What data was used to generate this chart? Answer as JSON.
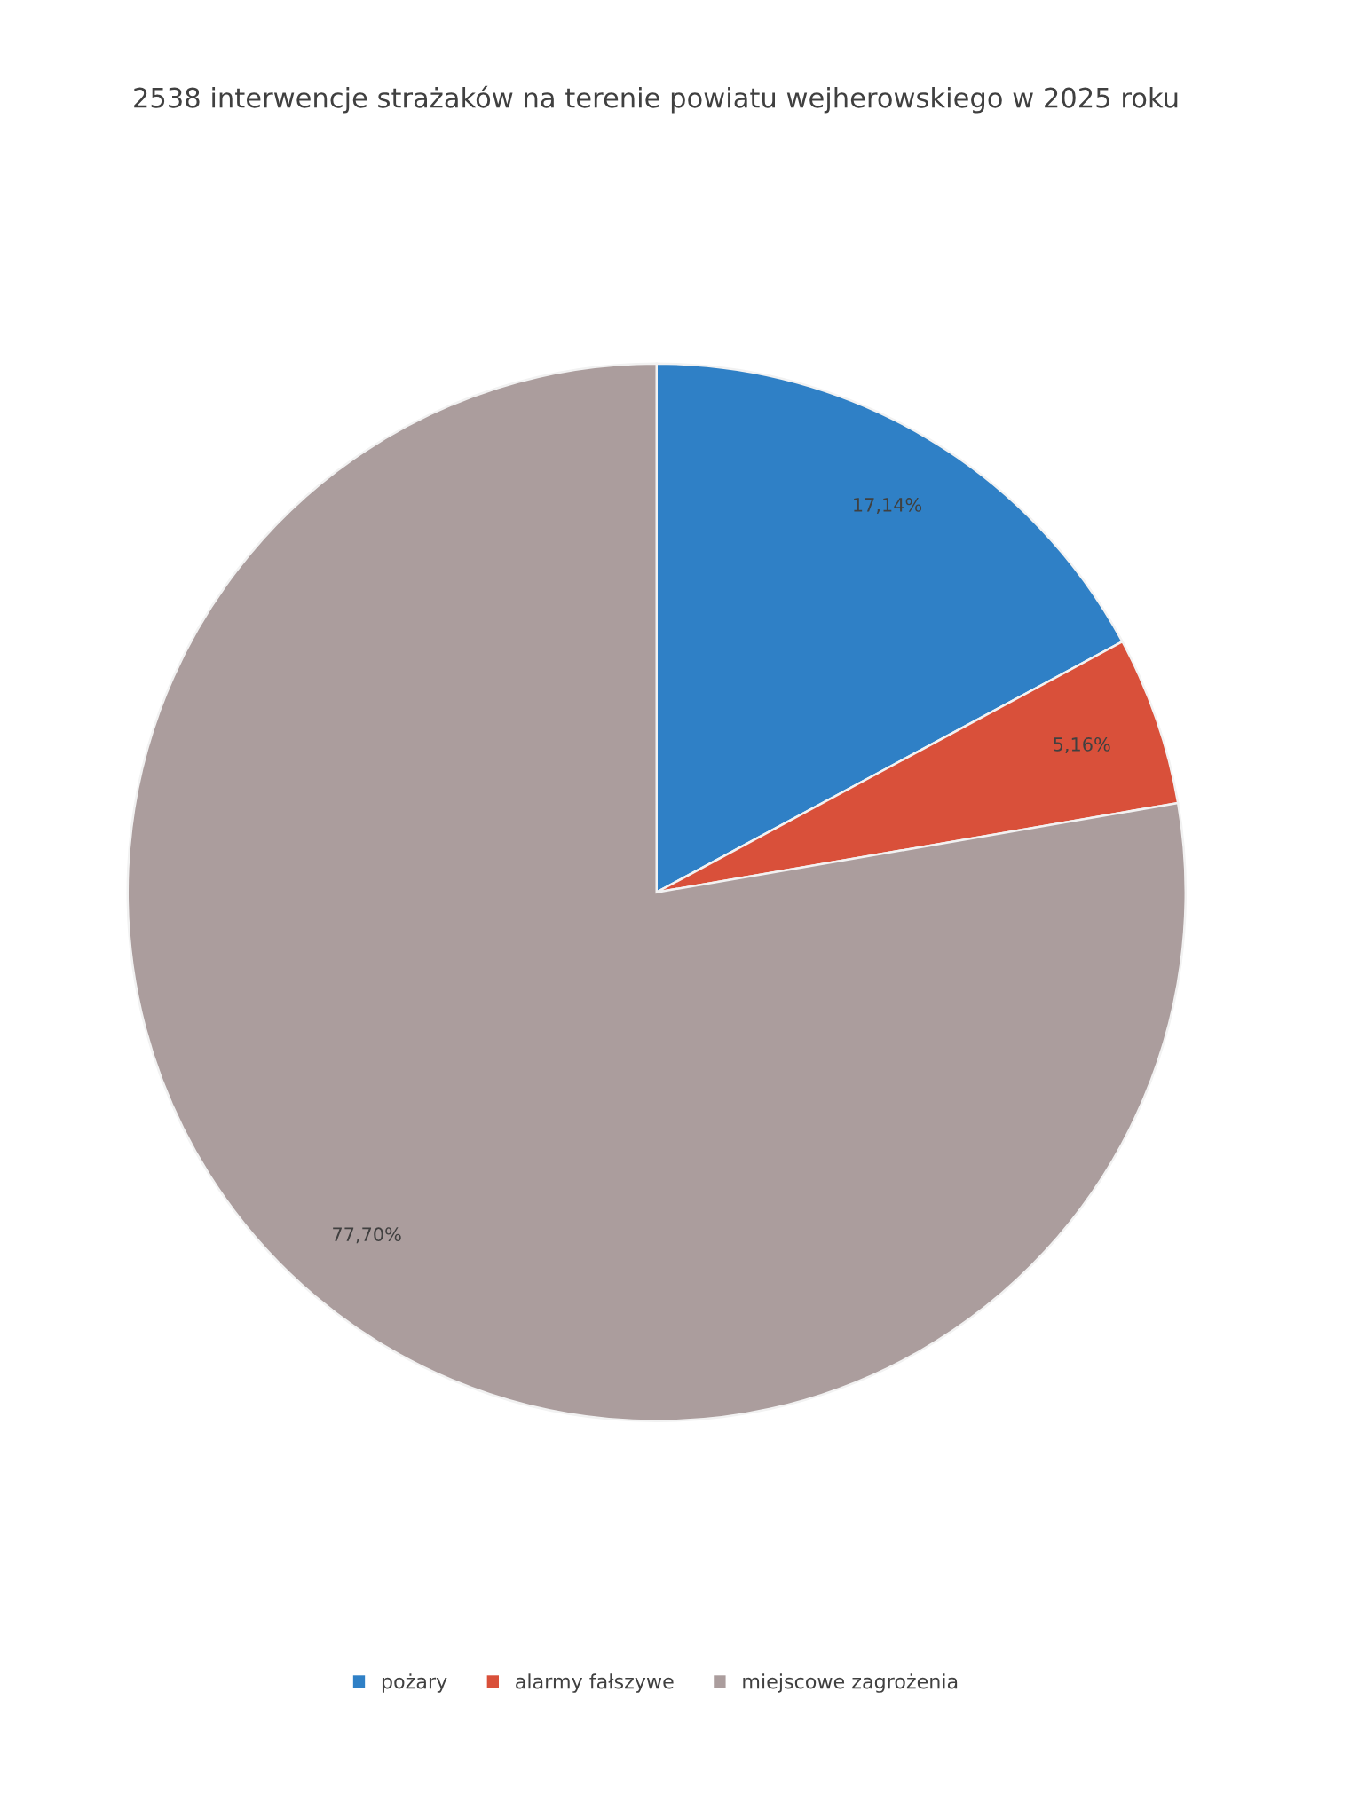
{
  "chart_data": {
    "type": "pie",
    "title": "2538 interwencje strażaków na terenie powiatu wejherowskiego w 2025 roku",
    "categories": [
      "pożary",
      "alarmy fałszywe",
      "miejscowe zagrożenia"
    ],
    "values": [
      17.14,
      5.16,
      77.7
    ],
    "colors": [
      "#2f80c6",
      "#d9503a",
      "#ab9d9d"
    ],
    "value_labels": [
      "17,14%",
      "5,16%",
      "77,70%"
    ],
    "legend": "bottom"
  }
}
